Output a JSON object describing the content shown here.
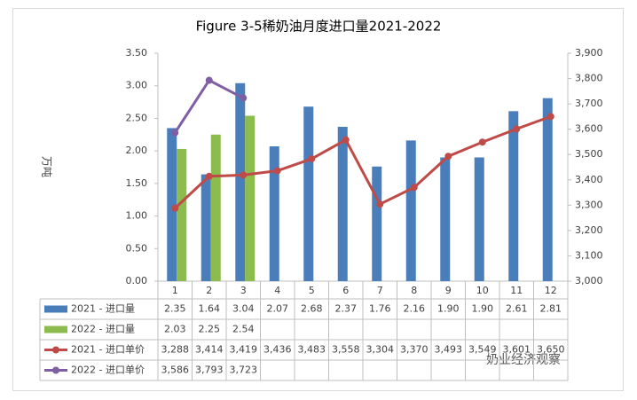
{
  "chart_data": {
    "type": "bar-line-table",
    "title": "Figure 3-5稀奶油月度进口量2021-2022",
    "ylabel": "万吨",
    "watermark": "奶业经济观察",
    "categories": [
      "1",
      "2",
      "3",
      "4",
      "5",
      "6",
      "7",
      "8",
      "9",
      "10",
      "11",
      "12"
    ],
    "ylim": [
      0,
      3.5
    ],
    "yticks": [
      {
        "value": 0,
        "label": "0.00"
      },
      {
        "value": 0.5,
        "label": "0.50"
      },
      {
        "value": 1,
        "label": "1.00"
      },
      {
        "value": 1.5,
        "label": "1.50"
      },
      {
        "value": 2,
        "label": "2.00"
      },
      {
        "value": 2.5,
        "label": "2.50"
      },
      {
        "value": 3,
        "label": "3.00"
      },
      {
        "value": 3.5,
        "label": "3.50"
      }
    ],
    "y2lim": [
      3000,
      3900
    ],
    "y2ticks": [
      {
        "value": 3000,
        "label": "3,000"
      },
      {
        "value": 3100,
        "label": "3,100"
      },
      {
        "value": 3200,
        "label": "3,200"
      },
      {
        "value": 3300,
        "label": "3,300"
      },
      {
        "value": 3400,
        "label": "3,400"
      },
      {
        "value": 3500,
        "label": "3,500"
      },
      {
        "value": 3600,
        "label": "3,600"
      },
      {
        "value": 3700,
        "label": "3,700"
      },
      {
        "value": 3800,
        "label": "3,800"
      },
      {
        "value": 3900,
        "label": "3,900"
      }
    ],
    "grid": false,
    "series": [
      {
        "name": "2021 - 进口量",
        "kind": "bar",
        "color": "#4a7ebb",
        "values": [
          2.35,
          1.64,
          3.04,
          2.07,
          2.68,
          2.37,
          1.76,
          2.16,
          1.9,
          1.9,
          2.61,
          2.81
        ],
        "value_labels": [
          "2.35",
          "1.64",
          "3.04",
          "2.07",
          "2.68",
          "2.37",
          "1.76",
          "2.16",
          "1.90",
          "1.90",
          "2.61",
          "2.81"
        ]
      },
      {
        "name": "2022 - 进口量",
        "kind": "bar",
        "color": "#8cbb4e",
        "values": [
          2.03,
          2.25,
          2.54,
          null,
          null,
          null,
          null,
          null,
          null,
          null,
          null,
          null
        ],
        "value_labels": [
          "2.03",
          "2.25",
          "2.54",
          null,
          null,
          null,
          null,
          null,
          null,
          null,
          null,
          null
        ]
      },
      {
        "name": "2021 - 进口单价",
        "kind": "line",
        "axis": "y2",
        "color": "#be4b48",
        "values": [
          3288,
          3414,
          3419,
          3436,
          3483,
          3558,
          3304,
          3370,
          3493,
          3549,
          3601,
          3650
        ],
        "value_labels": [
          "3,288",
          "3,414",
          "3,419",
          "3,436",
          "3,483",
          "3,558",
          "3,304",
          "3,370",
          "3,493",
          "3,549",
          "3,601",
          "3,650"
        ]
      },
      {
        "name": "2022 - 进口单价",
        "kind": "line",
        "axis": "y2",
        "color": "#7e5fa3",
        "values": [
          3586,
          3793,
          3723,
          null,
          null,
          null,
          null,
          null,
          null,
          null,
          null,
          null
        ],
        "value_labels": [
          "3,586",
          "3,793",
          "3,723",
          null,
          null,
          null,
          null,
          null,
          null,
          null,
          null,
          null
        ]
      }
    ]
  }
}
